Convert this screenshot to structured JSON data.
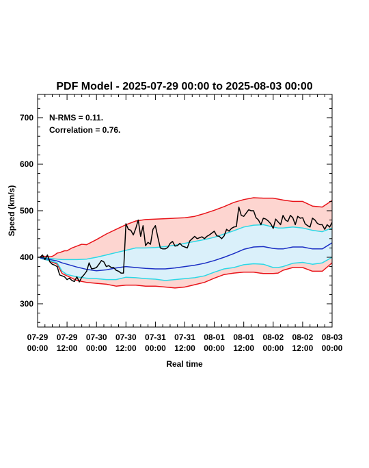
{
  "chart_data": {
    "type": "line",
    "title": "PDF Model - 2025-07-29 00:00 to 2025-08-03 00:00",
    "xlabel": "Real time",
    "ylabel": "Speed (km/s)",
    "ylim": [
      250,
      750
    ],
    "xlim": [
      0,
      120
    ],
    "yticks": [
      300,
      400,
      500,
      600,
      700
    ],
    "xticks": [
      {
        "x": 0,
        "line1": "07-29",
        "line2": "00:00"
      },
      {
        "x": 12,
        "line1": "07-29",
        "line2": "12:00"
      },
      {
        "x": 24,
        "line1": "07-30",
        "line2": "00:00"
      },
      {
        "x": 36,
        "line1": "07-30",
        "line2": "12:00"
      },
      {
        "x": 48,
        "line1": "07-31",
        "line2": "00:00"
      },
      {
        "x": 60,
        "line1": "07-31",
        "line2": "12:00"
      },
      {
        "x": 72,
        "line1": "08-01",
        "line2": "00:00"
      },
      {
        "x": 84,
        "line1": "08-01",
        "line2": "12:00"
      },
      {
        "x": 96,
        "line1": "08-02",
        "line2": "00:00"
      },
      {
        "x": 108,
        "line1": "08-02",
        "line2": "12:00"
      },
      {
        "x": 120,
        "line1": "08-03",
        "line2": "00:00"
      }
    ],
    "annotations": [
      "N-RMS = 0.11.",
      "Correlation = 0.76."
    ],
    "colors": {
      "outer_band_fill": "#fdd5d0",
      "inner_band_fill": "#daf0fa",
      "outer_bound": "#e8141a",
      "inner_bound": "#2ad8e6",
      "median": "#1a2ec4",
      "observed": "#000000"
    },
    "series": [
      {
        "role": "outer_upper",
        "x": [
          1,
          2,
          3,
          4,
          5,
          6,
          7,
          8,
          9,
          10,
          11,
          12,
          14,
          16,
          18,
          20,
          24,
          28,
          32,
          36,
          40,
          44,
          48,
          52,
          56,
          60,
          64,
          68,
          72,
          76,
          80,
          84,
          88,
          92,
          96,
          98,
          100,
          104,
          108,
          112,
          116,
          120
        ],
        "values": [
          401,
          402,
          402,
          401,
          401,
          402,
          405,
          409,
          410,
          412,
          414,
          414,
          420,
          424,
          428,
          427,
          438,
          450,
          460,
          470,
          478,
          481,
          482,
          483,
          484,
          485,
          488,
          494,
          501,
          509,
          518,
          524,
          528,
          527,
          527,
          525,
          523,
          520,
          520,
          510,
          508,
          522
        ]
      },
      {
        "role": "inner_upper",
        "x": [
          1,
          4,
          8,
          10,
          12,
          16,
          20,
          24,
          28,
          32,
          36,
          40,
          44,
          48,
          52,
          56,
          60,
          64,
          68,
          72,
          76,
          80,
          84,
          88,
          92,
          96,
          98,
          100,
          104,
          108,
          112,
          116,
          120
        ],
        "values": [
          400,
          398,
          396,
          395,
          395,
          395,
          396,
          400,
          405,
          410,
          415,
          420,
          420,
          421,
          423,
          426,
          430,
          434,
          438,
          443,
          450,
          457,
          465,
          469,
          470,
          465,
          463,
          463,
          465,
          463,
          458,
          455,
          463
        ]
      },
      {
        "role": "median",
        "x": [
          1,
          4,
          8,
          10,
          12,
          16,
          20,
          24,
          28,
          32,
          36,
          40,
          44,
          48,
          52,
          56,
          60,
          64,
          68,
          72,
          76,
          80,
          84,
          88,
          92,
          96,
          98,
          100,
          104,
          108,
          112,
          116,
          120
        ],
        "values": [
          399,
          396,
          392,
          388,
          385,
          379,
          374,
          371,
          373,
          377,
          380,
          378,
          376,
          375,
          375,
          377,
          380,
          383,
          387,
          393,
          400,
          408,
          417,
          422,
          423,
          419,
          418,
          418,
          422,
          422,
          418,
          418,
          431
        ]
      },
      {
        "role": "inner_lower",
        "x": [
          1,
          4,
          8,
          10,
          12,
          16,
          20,
          24,
          28,
          32,
          36,
          40,
          44,
          48,
          52,
          56,
          60,
          64,
          68,
          72,
          76,
          80,
          84,
          88,
          92,
          96,
          98,
          100,
          104,
          108,
          112,
          116,
          120
        ],
        "values": [
          398,
          394,
          388,
          370,
          363,
          358,
          355,
          354,
          352,
          352,
          357,
          356,
          354,
          353,
          350,
          352,
          354,
          356,
          360,
          368,
          375,
          378,
          384,
          386,
          385,
          378,
          378,
          380,
          387,
          389,
          385,
          388,
          400
        ]
      },
      {
        "role": "outer_lower",
        "x": [
          1,
          4,
          8,
          10,
          12,
          16,
          20,
          24,
          28,
          32,
          36,
          40,
          44,
          48,
          52,
          56,
          60,
          64,
          68,
          72,
          76,
          80,
          84,
          88,
          92,
          96,
          98,
          100,
          104,
          108,
          112,
          116,
          120
        ],
        "values": [
          398,
          394,
          385,
          365,
          360,
          350,
          346,
          344,
          342,
          338,
          340,
          340,
          338,
          338,
          336,
          334,
          336,
          341,
          346,
          355,
          363,
          366,
          368,
          368,
          365,
          365,
          366,
          372,
          378,
          378,
          370,
          370,
          388
        ]
      },
      {
        "role": "observed",
        "x": [
          0,
          1,
          2,
          3,
          4,
          5,
          6,
          7,
          8,
          9,
          10,
          11,
          12,
          13,
          14,
          15,
          16,
          17,
          18,
          19,
          20,
          21,
          22,
          23,
          24,
          25,
          26,
          27,
          28,
          29,
          30,
          31,
          32,
          33,
          34,
          35,
          36,
          37,
          38,
          39,
          40,
          41,
          42,
          43,
          44,
          45,
          46,
          47,
          48,
          49,
          50,
          51,
          52,
          53,
          54,
          55,
          56,
          57,
          58,
          59,
          60,
          61,
          62,
          63,
          64,
          65,
          66,
          67,
          68,
          69,
          70,
          71,
          72,
          73,
          74,
          75,
          76,
          77,
          78,
          79,
          80,
          81,
          82,
          83,
          84,
          85,
          86,
          87,
          88,
          89,
          90,
          91,
          92,
          93,
          94,
          95,
          96,
          97,
          98,
          99,
          100,
          101,
          102,
          103,
          104,
          105,
          106,
          107,
          108,
          109,
          110,
          111,
          112,
          113,
          114,
          115,
          116,
          117,
          118,
          119,
          120
        ],
        "values": [
          400,
          400,
          405,
          395,
          405,
          390,
          385,
          383,
          380,
          362,
          360,
          358,
          352,
          355,
          350,
          348,
          358,
          347,
          357,
          363,
          370,
          388,
          375,
          376,
          378,
          385,
          393,
          390,
          380,
          382,
          378,
          378,
          372,
          370,
          366,
          366,
          472,
          460,
          458,
          448,
          462,
          480,
          445,
          468,
          425,
          432,
          428,
          460,
          468,
          443,
          420,
          418,
          418,
          421,
          430,
          434,
          424,
          425,
          430,
          424,
          422,
          420,
          435,
          440,
          445,
          440,
          442,
          444,
          440,
          445,
          448,
          452,
          456,
          446,
          445,
          440,
          446,
          460,
          456,
          462,
          465,
          466,
          508,
          490,
          488,
          495,
          502,
          500,
          500,
          485,
          480,
          470,
          484,
          482,
          478,
          472,
          462,
          482,
          476,
          470,
          490,
          480,
          477,
          490,
          485,
          470,
          488,
          484,
          485,
          472,
          468,
          465,
          484,
          480,
          473,
          470,
          470,
          460,
          470,
          465,
          475
        ]
      }
    ]
  }
}
